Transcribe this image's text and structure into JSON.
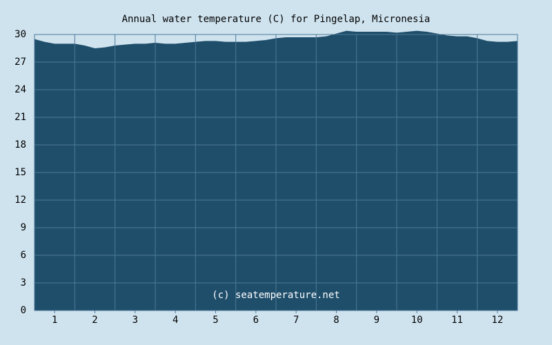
{
  "chart_data": {
    "type": "area",
    "title": "Annual water temperature (C) for Pingelap, Micronesia",
    "annotation": "(c) seatemperature.net",
    "x": [
      0.5,
      0.75,
      1,
      1.25,
      1.5,
      1.75,
      2,
      2.25,
      2.5,
      2.75,
      3,
      3.25,
      3.5,
      3.75,
      4,
      4.25,
      4.5,
      4.75,
      5,
      5.25,
      5.5,
      5.75,
      6,
      6.25,
      6.5,
      6.75,
      7,
      7.25,
      7.5,
      7.75,
      8,
      8.25,
      8.5,
      8.75,
      9,
      9.25,
      9.5,
      9.75,
      10,
      10.25,
      10.5,
      10.75,
      11,
      11.25,
      11.5,
      11.75,
      12,
      12.25,
      12.5
    ],
    "values": [
      29.5,
      29.2,
      29.0,
      29.0,
      29.0,
      28.8,
      28.5,
      28.6,
      28.8,
      28.9,
      29.0,
      29.0,
      29.1,
      29.0,
      29.0,
      29.1,
      29.2,
      29.3,
      29.3,
      29.2,
      29.2,
      29.2,
      29.3,
      29.4,
      29.6,
      29.7,
      29.7,
      29.7,
      29.7,
      29.8,
      30.1,
      30.4,
      30.3,
      30.3,
      30.3,
      30.3,
      30.2,
      30.3,
      30.4,
      30.3,
      30.1,
      29.9,
      29.8,
      29.8,
      29.6,
      29.3,
      29.2,
      29.2,
      29.3
    ],
    "color": "#1f4e6b",
    "xlim": [
      0.5,
      12.5
    ],
    "xticks": [
      1,
      2,
      3,
      4,
      5,
      6,
      7,
      8,
      9,
      10,
      11,
      12
    ],
    "ylim": [
      0,
      30
    ],
    "yticks": [
      0,
      3,
      6,
      9,
      12,
      15,
      18,
      21,
      24,
      27,
      30
    ],
    "grid": true
  }
}
